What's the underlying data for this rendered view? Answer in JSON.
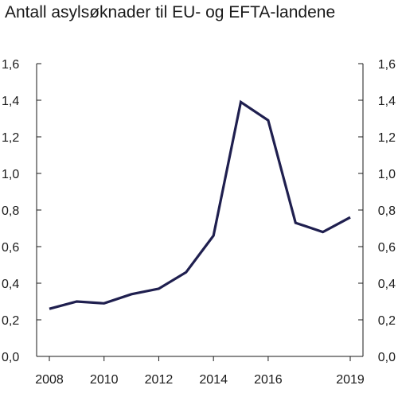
{
  "chart_data": {
    "type": "line",
    "title": "Antall asylsøknader til EU- og EFTA-landene",
    "xlabel": "",
    "ylabel": "",
    "xlim": [
      2008,
      2019
    ],
    "ylim": [
      0,
      1.6
    ],
    "x_ticks": [
      "2008",
      "2010",
      "2012",
      "2014",
      "2016",
      "2019"
    ],
    "x_tick_values": [
      2008,
      2010,
      2012,
      2014,
      2016,
      2019
    ],
    "y_ticks": [
      "0,0",
      "0,2",
      "0,4",
      "0,6",
      "0,8",
      "1,0",
      "1,2",
      "1,4",
      "1,6"
    ],
    "y_tick_values": [
      0,
      0.2,
      0.4,
      0.6,
      0.8,
      1.0,
      1.2,
      1.4,
      1.6
    ],
    "grid": false,
    "series": [
      {
        "color": "#1f1f4f",
        "x": [
          2008,
          2009,
          2010,
          2011,
          2012,
          2013,
          2014,
          2015,
          2016,
          2017,
          2018,
          2019
        ],
        "values": [
          0.26,
          0.3,
          0.29,
          0.34,
          0.37,
          0.46,
          0.66,
          1.39,
          1.29,
          0.73,
          0.68,
          0.76
        ]
      }
    ]
  }
}
